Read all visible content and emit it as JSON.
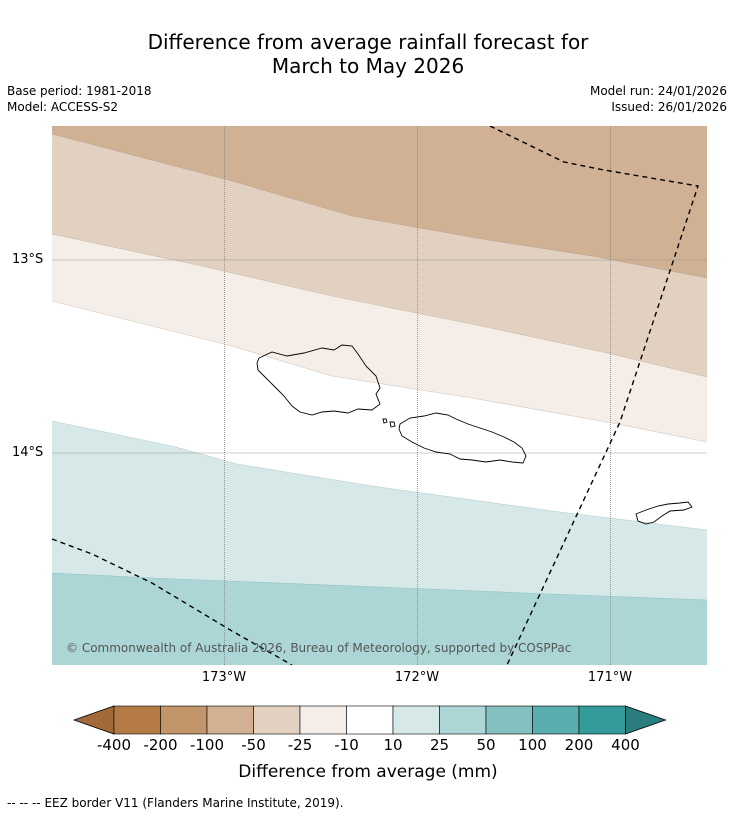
{
  "title": {
    "line1": "Difference from average rainfall forecast for",
    "line2": "March to May 2026"
  },
  "meta": {
    "base_period": "Base period: 1981-2018",
    "model": "Model: ACCESS-S2",
    "model_run": "Model run: 24/01/2026",
    "issued": "Issued: 26/01/2026"
  },
  "axes": {
    "lat_labels": [
      "13°S",
      "14°S"
    ],
    "lon_labels": [
      "173°W",
      "172°W",
      "171°W"
    ]
  },
  "copyright": "© Commonwealth of Australia 2026, Bureau of Meteorology, supported by COSPPac",
  "colorbar": {
    "ticks": [
      "-400",
      "-200",
      "-100",
      "-50",
      "-25",
      "-10",
      "10",
      "25",
      "50",
      "100",
      "200",
      "400"
    ],
    "colors": [
      "#a26a38",
      "#b37a45",
      "#c1946a",
      "#d1b192",
      "#e2d1c0",
      "#f4ede8",
      "#ffffff",
      "#d6e9e8",
      "#acd6d5",
      "#85c0c1",
      "#5aadad",
      "#359a9a",
      "#2a7e7f"
    ],
    "label": "Difference from average (mm)"
  },
  "legend": {
    "eez_line_symbol": "-- -- --",
    "eez_text": "EEZ border V11 (Flanders Marine Institute, 2019)."
  },
  "map_colors": {
    "band_dark_brown": "#d0b193",
    "band_mid_brown": "#e2d1c0",
    "band_light_brown": "#f4ede8",
    "band_white": "#ffffff",
    "band_light_teal": "#d6e9e8",
    "band_mid_teal": "#acd6d5"
  }
}
